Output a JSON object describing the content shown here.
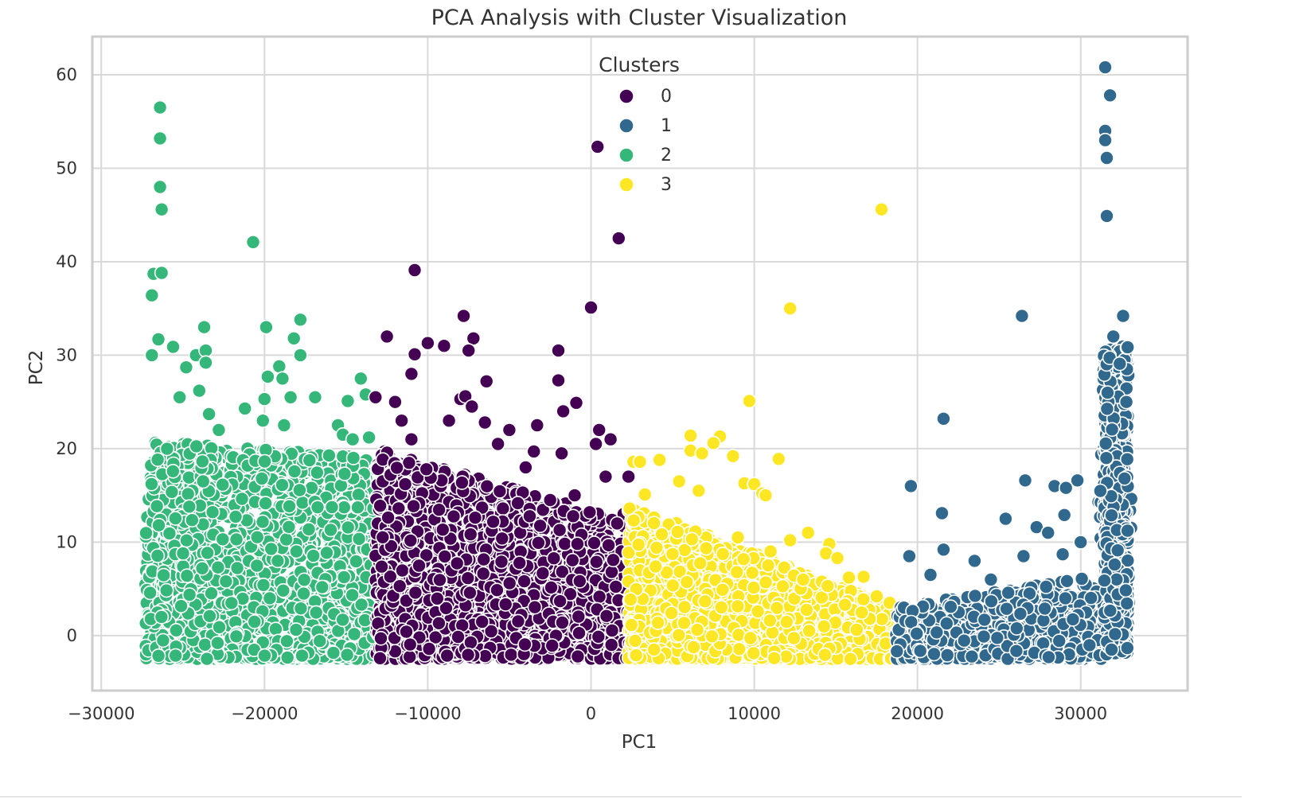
{
  "chart_data": {
    "type": "scatter",
    "title": "PCA Analysis with Cluster Visualization",
    "xlabel": "PC1",
    "ylabel": "PC2",
    "xlim": [
      -30500,
      36500
    ],
    "ylim": [
      -5.8,
      64
    ],
    "xticks": [
      -30000,
      -20000,
      -10000,
      0,
      10000,
      20000,
      30000
    ],
    "xtick_labels": [
      "−30000",
      "−20000",
      "−10000",
      "0",
      "10000",
      "20000",
      "30000"
    ],
    "yticks": [
      0,
      10,
      20,
      30,
      40,
      50,
      60
    ],
    "ytick_labels": [
      "0",
      "10",
      "20",
      "30",
      "40",
      "50",
      "60"
    ],
    "grid": true,
    "legend_title": "Clusters",
    "legend_position": "upper-center",
    "colors": {
      "0": "#440154",
      "1": "#31688e",
      "2": "#35b779",
      "3": "#fde725"
    },
    "series": [
      {
        "name": "0",
        "color": "#440154",
        "x_range": [
          -13200,
          2700
        ],
        "points": [
          [
            -10800,
            39.1
          ],
          [
            0,
            35.1
          ],
          [
            -7800,
            34.2
          ],
          [
            -12500,
            32.0
          ],
          [
            -10000,
            31.3
          ],
          [
            -7200,
            31.8
          ],
          [
            -10800,
            30.1
          ],
          [
            -2000,
            30.5
          ],
          [
            -9000,
            31.0
          ],
          [
            -7500,
            30.5
          ],
          [
            -11000,
            28.0
          ],
          [
            -6400,
            27.2
          ],
          [
            -2000,
            27.3
          ],
          [
            -13200,
            25.5
          ],
          [
            -12000,
            25.0
          ],
          [
            -8000,
            25.3
          ],
          [
            -7700,
            25.6
          ],
          [
            -7300,
            24.5
          ],
          [
            -900,
            24.9
          ],
          [
            -1700,
            24.0
          ],
          [
            -11600,
            23.0
          ],
          [
            -8700,
            23.0
          ],
          [
            -6500,
            22.8
          ],
          [
            -5000,
            22.0
          ],
          [
            -3300,
            22.5
          ],
          [
            500,
            22.0
          ],
          [
            -11000,
            21.0
          ],
          [
            -5700,
            20.5
          ],
          [
            -3500,
            19.7
          ],
          [
            1200,
            21.0
          ],
          [
            300,
            20.5
          ],
          [
            -1800,
            19.5
          ],
          [
            -4000,
            18.0
          ],
          [
            900,
            17.0
          ],
          [
            2300,
            17.0
          ],
          [
            -1000,
            15.0
          ],
          [
            -2500,
            14.5
          ],
          [
            2000,
            13.0
          ],
          [
            1600,
            12.0
          ]
        ],
        "outliers": [
          [
            400,
            52.3
          ],
          [
            1700,
            42.5
          ]
        ]
      },
      {
        "name": "1",
        "color": "#31688e",
        "x_range": [
          18700,
          33100
        ],
        "points": [
          [
            26400,
            34.2
          ],
          [
            32600,
            34.2
          ],
          [
            32000,
            32.0
          ],
          [
            21600,
            23.2
          ],
          [
            19600,
            16.0
          ],
          [
            26600,
            16.6
          ],
          [
            28400,
            16.0
          ],
          [
            29100,
            15.8
          ],
          [
            29800,
            16.6
          ],
          [
            21500,
            13.1
          ],
          [
            25400,
            12.5
          ],
          [
            29000,
            12.9
          ],
          [
            27300,
            11.6
          ],
          [
            28000,
            11.0
          ],
          [
            21600,
            9.2
          ],
          [
            30000,
            10.0
          ],
          [
            19500,
            8.5
          ],
          [
            23500,
            8.0
          ],
          [
            28900,
            8.7
          ],
          [
            26500,
            8.5
          ],
          [
            24500,
            6.0
          ],
          [
            20800,
            6.5
          ],
          [
            32800,
            25.0
          ]
        ],
        "outliers": [
          [
            31500,
            60.8
          ],
          [
            31800,
            57.8
          ],
          [
            31500,
            54.0
          ],
          [
            31500,
            53.0
          ],
          [
            31600,
            51.1
          ],
          [
            31600,
            44.9
          ]
        ]
      },
      {
        "name": "2",
        "color": "#35b779",
        "x_range": [
          -27300,
          -13300
        ],
        "points": [
          [
            -26800,
            38.7
          ],
          [
            -26900,
            36.4
          ],
          [
            -20700,
            42.1
          ],
          [
            -23700,
            33.0
          ],
          [
            -19900,
            33.0
          ],
          [
            -17800,
            33.8
          ],
          [
            -18200,
            31.8
          ],
          [
            -26500,
            31.7
          ],
          [
            -25600,
            30.9
          ],
          [
            -24200,
            30.0
          ],
          [
            -23600,
            30.5
          ],
          [
            -17800,
            30.0
          ],
          [
            -26900,
            30.0
          ],
          [
            -23600,
            29.2
          ],
          [
            -24800,
            28.7
          ],
          [
            -19100,
            28.8
          ],
          [
            -19800,
            27.7
          ],
          [
            -18900,
            27.5
          ],
          [
            -14100,
            27.5
          ],
          [
            -25200,
            25.5
          ],
          [
            -24000,
            26.2
          ],
          [
            -18400,
            25.5
          ],
          [
            -16900,
            25.5
          ],
          [
            -14900,
            25.1
          ],
          [
            -13800,
            25.8
          ],
          [
            -23400,
            23.7
          ],
          [
            -21200,
            24.3
          ],
          [
            -20000,
            25.3
          ],
          [
            -22800,
            22.0
          ],
          [
            -20100,
            23.0
          ],
          [
            -15500,
            22.5
          ],
          [
            -18800,
            22.5
          ],
          [
            -15200,
            21.5
          ],
          [
            -13600,
            21.2
          ],
          [
            -14600,
            21.0
          ]
        ],
        "outliers": [
          [
            -26400,
            56.5
          ],
          [
            -26400,
            53.2
          ],
          [
            -26400,
            48.0
          ],
          [
            -26300,
            45.6
          ],
          [
            -26300,
            38.8
          ]
        ]
      },
      {
        "name": "3",
        "color": "#fde725",
        "x_range": [
          2300,
          18700
        ],
        "points": [
          [
            12200,
            35.0
          ],
          [
            9700,
            25.1
          ],
          [
            6100,
            21.4
          ],
          [
            7900,
            21.3
          ],
          [
            7500,
            20.6
          ],
          [
            6100,
            19.8
          ],
          [
            6800,
            19.5
          ],
          [
            8700,
            19.2
          ],
          [
            6800,
            19.5
          ],
          [
            2600,
            18.6
          ],
          [
            4200,
            18.8
          ],
          [
            11500,
            18.9
          ],
          [
            3000,
            18.6
          ],
          [
            9400,
            16.3
          ],
          [
            10000,
            16.2
          ],
          [
            5400,
            16.5
          ],
          [
            10500,
            15.2
          ],
          [
            3300,
            15.1
          ],
          [
            6600,
            15.5
          ],
          [
            10700,
            15.0
          ],
          [
            13300,
            11.0
          ],
          [
            12200,
            10.2
          ],
          [
            14600,
            9.8
          ],
          [
            14400,
            8.8
          ],
          [
            15100,
            8.3
          ],
          [
            13000,
            6.0
          ],
          [
            15800,
            6.2
          ],
          [
            16700,
            6.3
          ],
          [
            14500,
            5.3
          ],
          [
            17500,
            4.2
          ],
          [
            18300,
            3.5
          ],
          [
            11000,
            9.0
          ],
          [
            9000,
            10.5
          ]
        ],
        "outliers": [
          [
            17800,
            45.6
          ]
        ]
      }
    ]
  }
}
